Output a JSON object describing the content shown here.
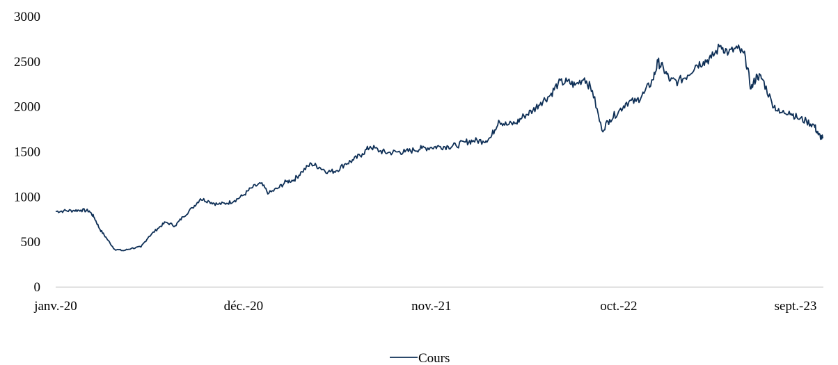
{
  "chart_data": {
    "type": "line",
    "title": "",
    "xlabel": "",
    "ylabel": "",
    "ylim": [
      0,
      3000
    ],
    "yticks": [
      0,
      500,
      1000,
      1500,
      2000,
      2500,
      3000
    ],
    "xticks": [
      "janv.-20",
      "déc.-20",
      "nov.-21",
      "oct.-22",
      "sept.-23"
    ],
    "x_range": [
      "2020-01",
      "2023-09"
    ],
    "grid": false,
    "legend": "bottom",
    "colors": {
      "line": "#0e2f56",
      "axis": "#d9d9d9"
    },
    "series": [
      {
        "name": "Cours",
        "points": [
          [
            "2020-01-01",
            840
          ],
          [
            "2020-01-15",
            845
          ],
          [
            "2020-02-01",
            850
          ],
          [
            "2020-02-15",
            855
          ],
          [
            "2020-03-01",
            845
          ],
          [
            "2020-03-10",
            770
          ],
          [
            "2020-03-20",
            640
          ],
          [
            "2020-04-01",
            540
          ],
          [
            "2020-04-15",
            420
          ],
          [
            "2020-05-01",
            405
          ],
          [
            "2020-05-15",
            430
          ],
          [
            "2020-06-01",
            445
          ],
          [
            "2020-06-15",
            560
          ],
          [
            "2020-07-01",
            650
          ],
          [
            "2020-07-15",
            720
          ],
          [
            "2020-08-01",
            680
          ],
          [
            "2020-08-15",
            780
          ],
          [
            "2020-09-01",
            880
          ],
          [
            "2020-09-15",
            980
          ],
          [
            "2020-10-01",
            950
          ],
          [
            "2020-10-15",
            920
          ],
          [
            "2020-11-01",
            930
          ],
          [
            "2020-11-15",
            960
          ],
          [
            "2020-12-01",
            1020
          ],
          [
            "2020-12-15",
            1100
          ],
          [
            "2021-01-01",
            1150
          ],
          [
            "2021-01-15",
            1040
          ],
          [
            "2021-02-01",
            1100
          ],
          [
            "2021-02-15",
            1170
          ],
          [
            "2021-03-01",
            1190
          ],
          [
            "2021-03-15",
            1280
          ],
          [
            "2021-04-01",
            1370
          ],
          [
            "2021-04-15",
            1330
          ],
          [
            "2021-05-01",
            1280
          ],
          [
            "2021-05-15",
            1290
          ],
          [
            "2021-06-01",
            1370
          ],
          [
            "2021-06-15",
            1410
          ],
          [
            "2021-07-01",
            1480
          ],
          [
            "2021-07-15",
            1560
          ],
          [
            "2021-08-01",
            1510
          ],
          [
            "2021-08-15",
            1490
          ],
          [
            "2021-09-01",
            1500
          ],
          [
            "2021-09-15",
            1500
          ],
          [
            "2021-10-01",
            1520
          ],
          [
            "2021-10-15",
            1540
          ],
          [
            "2021-11-01",
            1550
          ],
          [
            "2021-11-15",
            1560
          ],
          [
            "2021-12-01",
            1560
          ],
          [
            "2021-12-15",
            1570
          ],
          [
            "2022-01-01",
            1610
          ],
          [
            "2022-01-15",
            1625
          ],
          [
            "2022-02-01",
            1620
          ],
          [
            "2022-02-15",
            1660
          ],
          [
            "2022-03-01",
            1850
          ],
          [
            "2022-03-15",
            1800
          ],
          [
            "2022-04-01",
            1820
          ],
          [
            "2022-04-15",
            1900
          ],
          [
            "2022-05-01",
            1960
          ],
          [
            "2022-05-15",
            2050
          ],
          [
            "2022-06-01",
            2130
          ],
          [
            "2022-06-15",
            2260
          ],
          [
            "2022-07-01",
            2280
          ],
          [
            "2022-07-15",
            2240
          ],
          [
            "2022-08-01",
            2320
          ],
          [
            "2022-08-15",
            2180
          ],
          [
            "2022-09-01",
            1740
          ],
          [
            "2022-09-15",
            1860
          ],
          [
            "2022-10-01",
            1950
          ],
          [
            "2022-10-15",
            2050
          ],
          [
            "2022-11-01",
            2060
          ],
          [
            "2022-11-15",
            2150
          ],
          [
            "2022-12-01",
            2300
          ],
          [
            "2022-12-10",
            2500
          ],
          [
            "2022-12-20",
            2420
          ],
          [
            "2023-01-01",
            2290
          ],
          [
            "2023-01-15",
            2280
          ],
          [
            "2023-02-01",
            2350
          ],
          [
            "2023-02-15",
            2460
          ],
          [
            "2023-03-01",
            2500
          ],
          [
            "2023-03-15",
            2540
          ],
          [
            "2023-04-01",
            2680
          ],
          [
            "2023-04-15",
            2600
          ],
          [
            "2023-05-01",
            2650
          ],
          [
            "2023-05-15",
            2550
          ],
          [
            "2023-05-25",
            2200
          ],
          [
            "2023-06-05",
            2350
          ],
          [
            "2023-06-15",
            2300
          ],
          [
            "2023-07-01",
            2050
          ],
          [
            "2023-07-15",
            1930
          ],
          [
            "2023-08-01",
            1950
          ],
          [
            "2023-08-15",
            1880
          ],
          [
            "2023-09-01",
            1840
          ],
          [
            "2023-09-15",
            1790
          ],
          [
            "2023-09-22",
            1690
          ],
          [
            "2023-09-30",
            1650
          ]
        ]
      }
    ]
  }
}
